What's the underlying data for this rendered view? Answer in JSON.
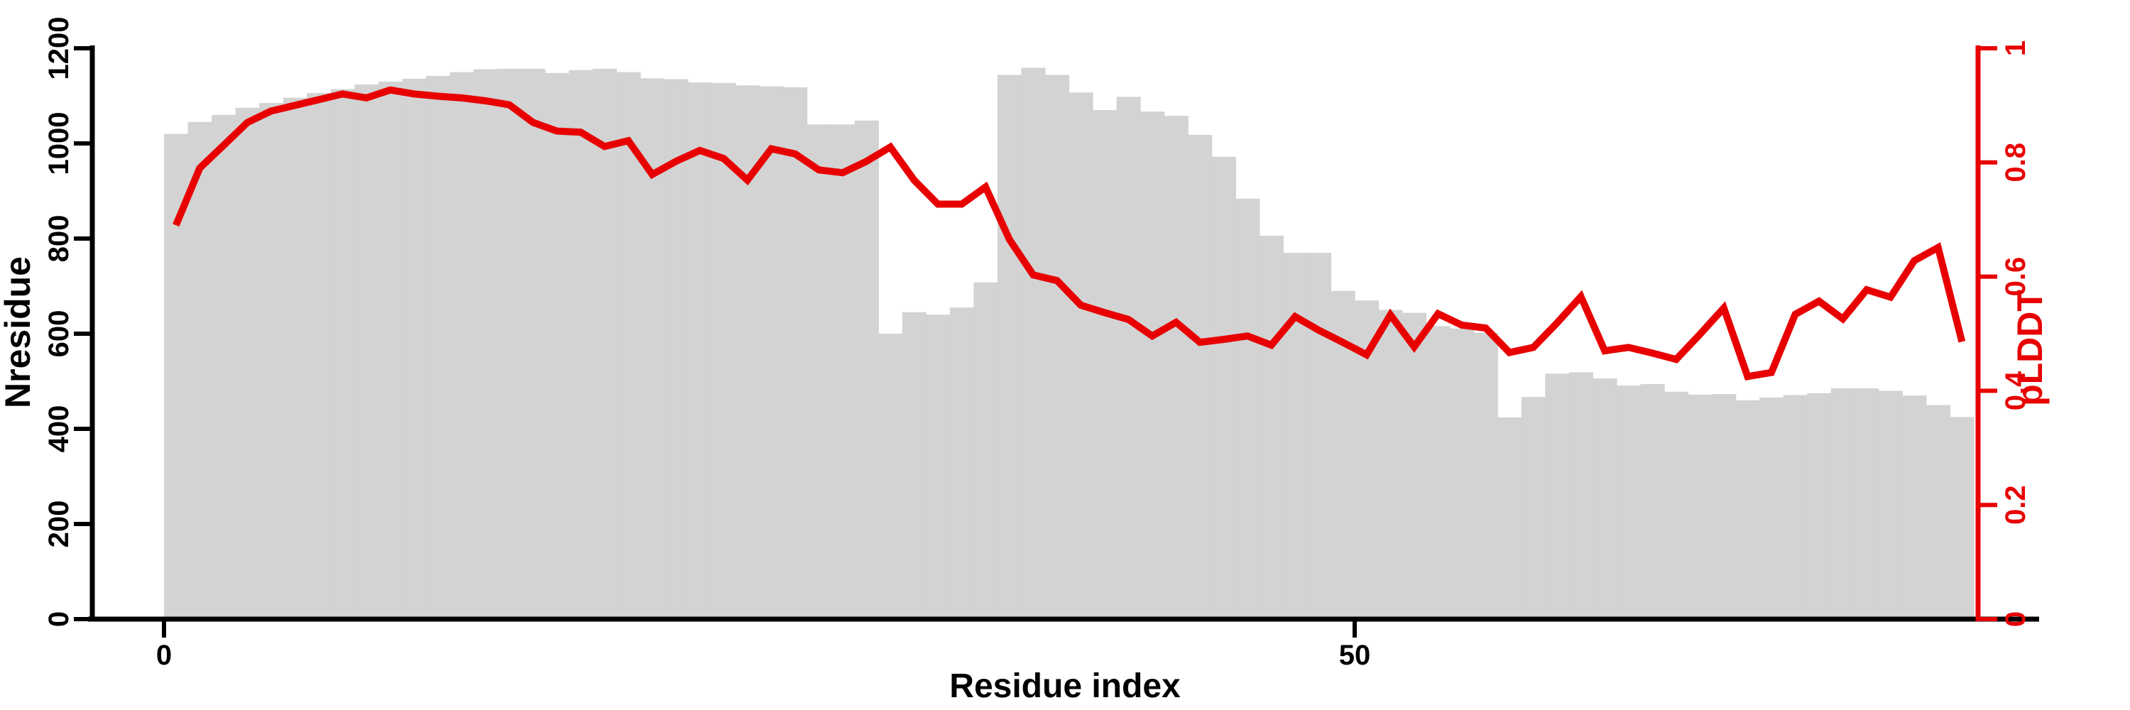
{
  "chart_data": {
    "type": "bar+line dual-axis",
    "title": "",
    "xlabel": "Residue index",
    "ylabel": "Nresidue",
    "y2label": "pLDDT",
    "x_axis": {
      "range": [
        0,
        76
      ],
      "ticks": [
        {
          "value": 0,
          "label": "0"
        },
        {
          "value": 50,
          "label": "50"
        }
      ]
    },
    "y_axis": {
      "range": [
        0,
        1200
      ],
      "ticks": [
        {
          "value": 0,
          "label": "0"
        },
        {
          "value": 200,
          "label": "200"
        },
        {
          "value": 400,
          "label": "400"
        },
        {
          "value": 600,
          "label": "600"
        },
        {
          "value": 800,
          "label": "800"
        },
        {
          "value": 1000,
          "label": "1000"
        },
        {
          "value": 1200,
          "label": "1200"
        }
      ]
    },
    "y2_axis": {
      "range": [
        0,
        1
      ],
      "ticks": [
        {
          "value": 0,
          "label": "0"
        },
        {
          "value": 0.2,
          "label": "0.2"
        },
        {
          "value": 0.4,
          "label": "0.4"
        },
        {
          "value": 0.6,
          "label": "0.6"
        },
        {
          "value": 0.8,
          "label": "0.8"
        },
        {
          "value": 1,
          "label": "1"
        }
      ]
    },
    "legend": "none",
    "grid": "off",
    "series": [
      {
        "name": "Nresidue",
        "type": "bar",
        "axis": "left",
        "color": "#d3d3d3",
        "values": [
          1020,
          1045,
          1060,
          1075,
          1085,
          1096,
          1106,
          1114,
          1124,
          1130,
          1136,
          1142,
          1150,
          1156,
          1157,
          1157,
          1148,
          1154,
          1157,
          1150,
          1137,
          1135,
          1128,
          1127,
          1122,
          1120,
          1118,
          1040,
          1040,
          1048,
          600,
          645,
          640,
          655,
          708,
          1144,
          1159,
          1144,
          1107,
          1070,
          1098,
          1067,
          1058,
          1018,
          972,
          884,
          806,
          770,
          770,
          690,
          670,
          650,
          644,
          616,
          611,
          602,
          424,
          467,
          516,
          519,
          506,
          491,
          494,
          478,
          472,
          473,
          460,
          466,
          471,
          475,
          485,
          485,
          480,
          470,
          450,
          425
        ]
      },
      {
        "name": "pLDDT",
        "type": "line",
        "axis": "right",
        "color": "#e80000",
        "values": [
          0.69,
          0.79,
          0.83,
          0.87,
          0.89,
          0.9,
          0.91,
          0.92,
          0.913,
          0.927,
          0.92,
          0.916,
          0.913,
          0.908,
          0.901,
          0.87,
          0.855,
          0.853,
          0.828,
          0.838,
          0.779,
          0.802,
          0.821,
          0.807,
          0.769,
          0.824,
          0.815,
          0.787,
          0.782,
          0.802,
          0.827,
          0.769,
          0.727,
          0.727,
          0.757,
          0.665,
          0.603,
          0.593,
          0.55,
          0.537,
          0.525,
          0.496,
          0.52,
          0.485,
          0.49,
          0.496,
          0.48,
          0.53,
          0.506,
          0.485,
          0.463,
          0.533,
          0.477,
          0.535,
          0.515,
          0.51,
          0.467,
          0.476,
          0.519,
          0.565,
          0.47,
          0.476,
          0.466,
          0.455,
          0.499,
          0.545,
          0.425,
          0.432,
          0.534,
          0.557,
          0.526,
          0.577,
          0.564,
          0.628,
          0.651,
          0.486
        ]
      }
    ],
    "x_description": "one bar per residue, bar i spans [i, i+1]; line points at bar centers"
  },
  "colors": {
    "bar": "#d3d3d3",
    "line": "#e80000",
    "right_axis": "#e80000",
    "axis": "#000000",
    "background": "#ffffff"
  }
}
